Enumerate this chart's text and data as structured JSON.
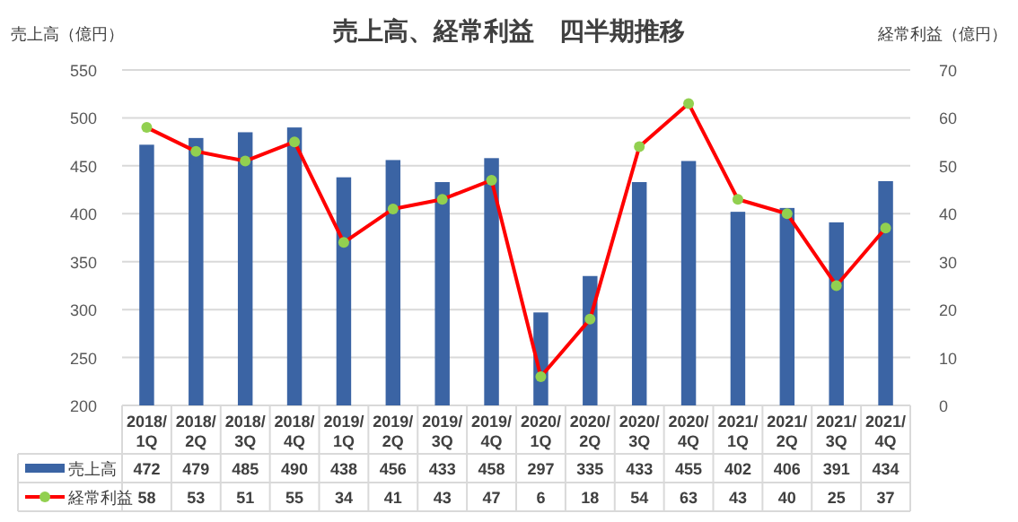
{
  "chart_data": {
    "type": "bar",
    "title": "売上高、経常利益　四半期推移",
    "ylabel": "売上高（億円）",
    "y2label": "経常利益（億円）",
    "categories": [
      "2018/1Q",
      "2018/2Q",
      "2018/3Q",
      "2018/4Q",
      "2019/1Q",
      "2019/2Q",
      "2019/3Q",
      "2019/4Q",
      "2020/1Q",
      "2020/2Q",
      "2020/3Q",
      "2020/4Q",
      "2021/1Q",
      "2021/2Q",
      "2021/3Q",
      "2021/4Q"
    ],
    "series": [
      {
        "name": "売上高",
        "color": "#3b64a4",
        "values": [
          472,
          479,
          485,
          490,
          438,
          456,
          433,
          458,
          297,
          335,
          433,
          455,
          402,
          406,
          391,
          434
        ]
      },
      {
        "name": "経常利益",
        "type": "line",
        "axis": "y2",
        "color": "#ff0000",
        "marker": "circle",
        "values": [
          58,
          53,
          51,
          55,
          34,
          41,
          43,
          47,
          6,
          18,
          54,
          63,
          43,
          40,
          25,
          37
        ]
      }
    ],
    "ylim": [
      200,
      550
    ],
    "yticks": [
      200,
      250,
      300,
      350,
      400,
      450,
      500,
      550
    ],
    "y2lim": [
      0,
      70
    ],
    "y2ticks": [
      0,
      10,
      20,
      30,
      40,
      50,
      60,
      70
    ],
    "grid": "y",
    "legend": "bottom",
    "data_labels": true
  }
}
